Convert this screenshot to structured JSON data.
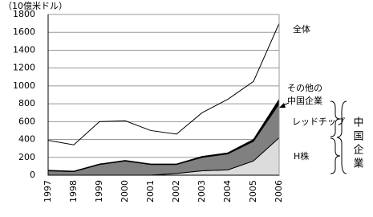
{
  "chart_data": {
    "type": "stacked-area",
    "unit_label": "（10億米ドル）",
    "categories": [
      "1997",
      "1998",
      "1999",
      "2000",
      "2001",
      "2002",
      "2003",
      "2004",
      "2005",
      "2006"
    ],
    "series": [
      {
        "name": "H株",
        "color": "#dcdcdc",
        "values": [
          0,
          0,
          0,
          0,
          0,
          20,
          50,
          60,
          160,
          420
        ]
      },
      {
        "name": "レッドチップ",
        "color": "#808080",
        "values": [
          50,
          40,
          120,
          160,
          120,
          100,
          150,
          180,
          220,
          380
        ]
      },
      {
        "name_lines": [
          "その他の",
          "中国企業"
        ],
        "color": "#000000",
        "values": [
          5,
          5,
          5,
          5,
          5,
          5,
          10,
          10,
          20,
          50
        ]
      }
    ],
    "total": {
      "name": "全体",
      "color": "#000000",
      "values": [
        390,
        340,
        600,
        610,
        500,
        460,
        700,
        850,
        1050,
        1700
      ]
    },
    "group_label": "中国企業",
    "ylim": [
      0,
      1800
    ],
    "yticks": [
      0,
      200,
      400,
      600,
      800,
      1000,
      1200,
      1400,
      1600,
      1800
    ],
    "grid": true
  }
}
